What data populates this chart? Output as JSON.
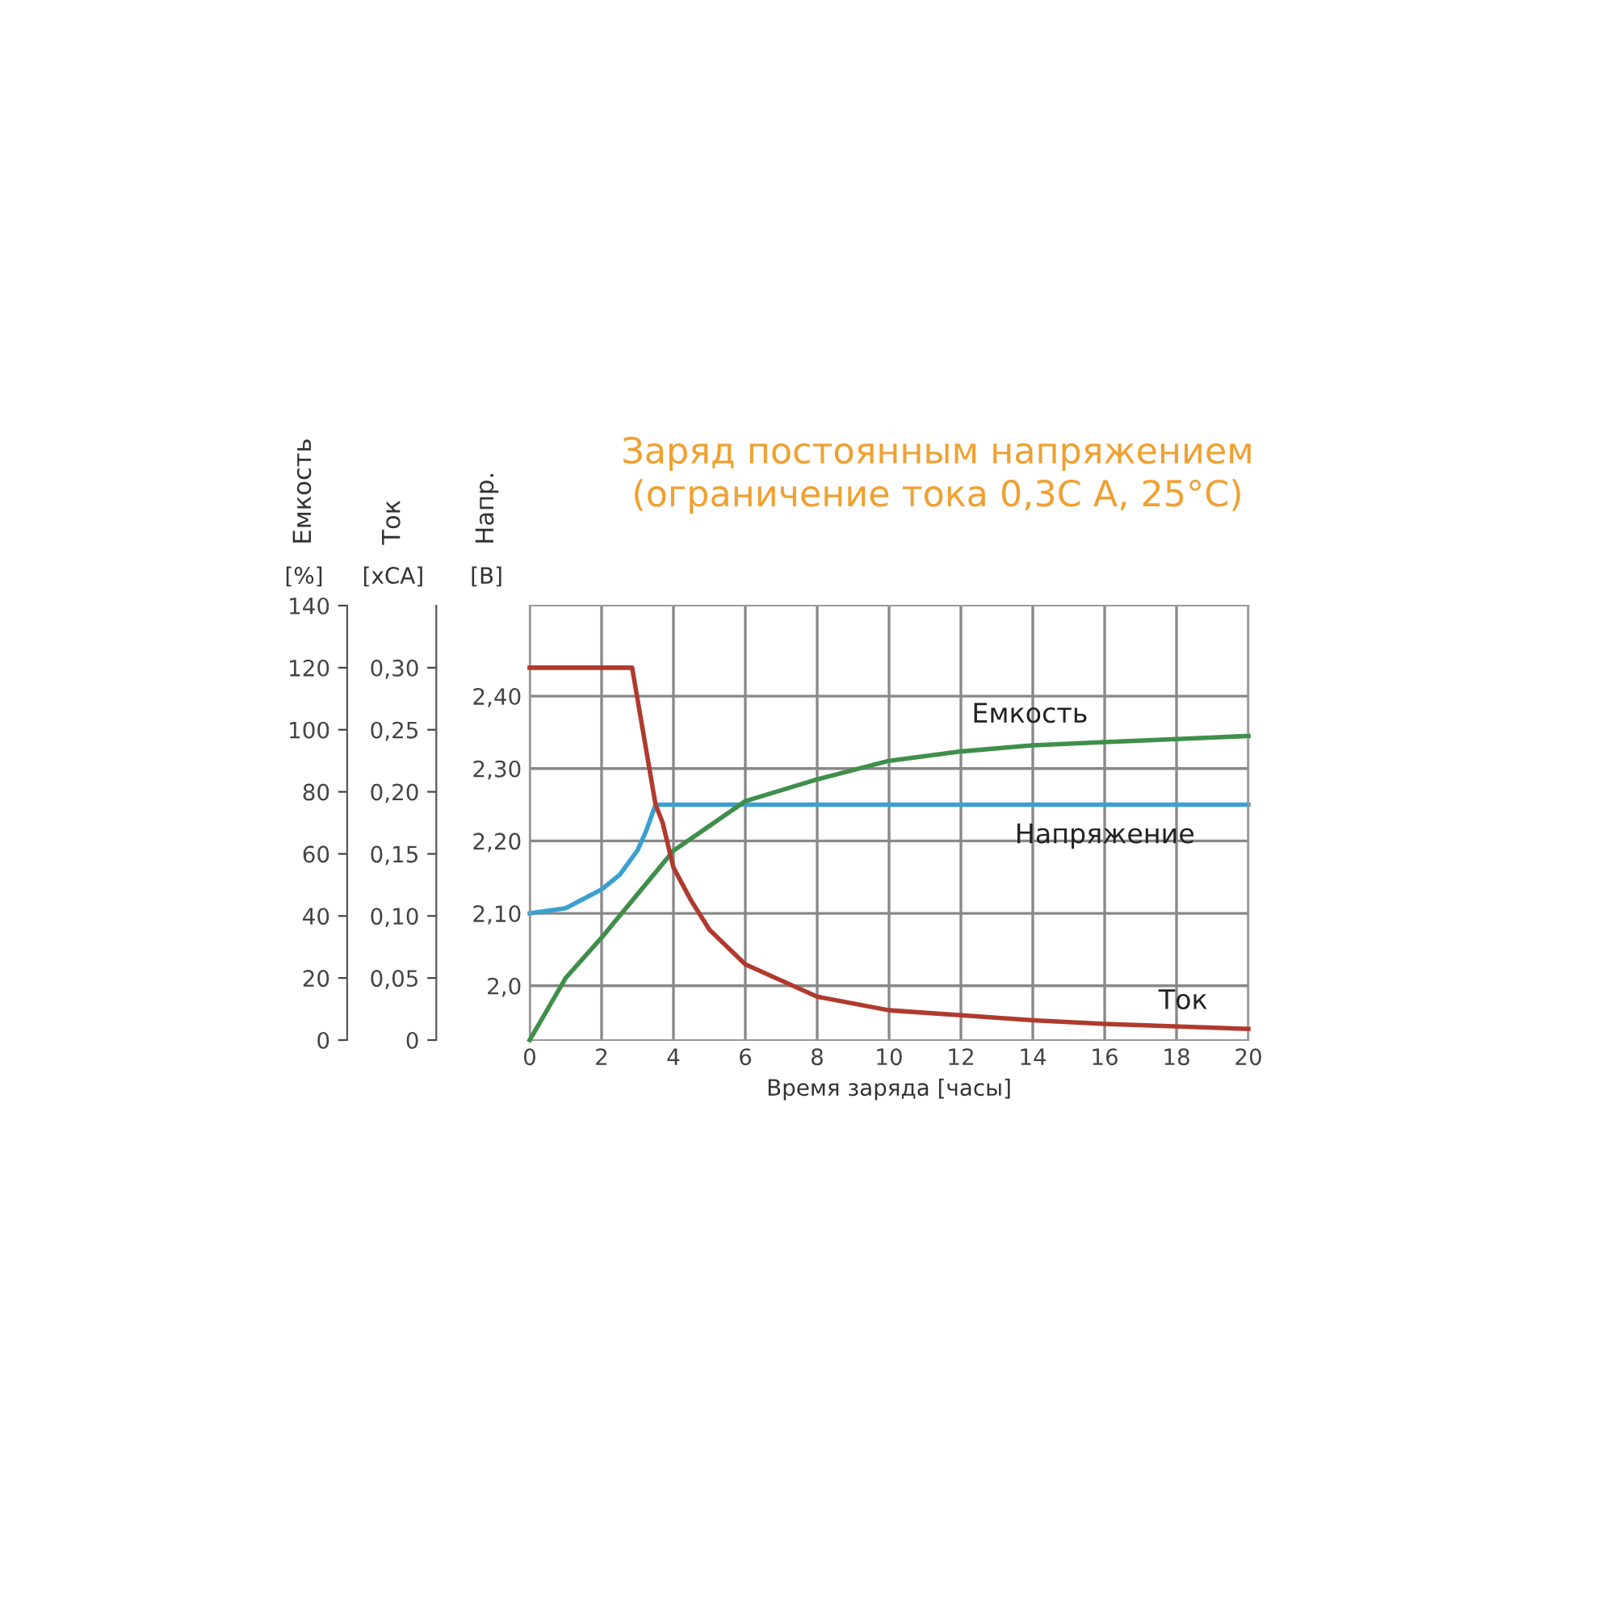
{
  "chart_data": {
    "type": "line",
    "title": "Заряд постоянным напряжением\n(ограничение тока 0,3С А, 25°С)",
    "xlabel": "Время заряда [часы]",
    "ylabel": "Напр.",
    "y2label": "Ток",
    "y3label": "Емкость",
    "annotations": [
      "[В]",
      "[xCA]",
      "[%]"
    ],
    "xlim": [
      0,
      20
    ],
    "xticks": [
      0,
      2,
      4,
      6,
      8,
      10,
      12,
      14,
      16,
      18,
      20
    ],
    "y3lim": [
      0,
      140
    ],
    "y3ticks": [
      0,
      20,
      40,
      60,
      80,
      100,
      120,
      140
    ],
    "y2lim": [
      0,
      0.35
    ],
    "y2ticks": [
      0,
      {
        "value": 0.05,
        "label": "0,05"
      },
      {
        "value": 0.1,
        "label": "0,10"
      },
      {
        "value": 0.15,
        "label": "0,15"
      },
      {
        "value": 0.2,
        "label": "0,20"
      },
      {
        "value": 0.25,
        "label": "0,25"
      },
      {
        "value": 0.3,
        "label": "0,30"
      }
    ],
    "ylim": [
      1.925,
      2.525
    ],
    "yticks": [
      {
        "value": 2.0,
        "label": "2,0"
      },
      {
        "value": 2.1,
        "label": "2,10"
      },
      {
        "value": 2.2,
        "label": "2,20"
      },
      {
        "value": 2.3,
        "label": "2,30"
      },
      {
        "value": 2.4,
        "label": "2,40"
      }
    ],
    "grid": true,
    "legend": false,
    "marker": "none",
    "line_style": "solid",
    "series": [
      {
        "name": "Емкость",
        "color": "#3f8f4a",
        "axis": "y3",
        "x": [
          0,
          1,
          2,
          3,
          4,
          5,
          6,
          8,
          10,
          12,
          14,
          16,
          18,
          20
        ],
        "values": [
          0,
          20,
          33,
          47,
          61,
          69,
          77,
          84,
          90,
          93,
          95,
          96,
          97,
          98
        ]
      },
      {
        "name": "Напряжение",
        "color": "#3aa0d0",
        "axis": "y",
        "x": [
          0,
          1,
          2,
          2.5,
          3,
          3.25,
          3.5,
          20
        ],
        "values": [
          2.1,
          2.107,
          2.133,
          2.153,
          2.187,
          2.215,
          2.25,
          2.25
        ]
      },
      {
        "name": "Ток",
        "color": "#b03a2e",
        "axis": "y2",
        "x": [
          0,
          2.85,
          3.5,
          3.7,
          4,
          4.5,
          5,
          6,
          8,
          10,
          12,
          14,
          16,
          20
        ],
        "values": [
          0.3,
          0.3,
          0.19,
          0.175,
          0.139,
          0.112,
          0.089,
          0.061,
          0.035,
          0.024,
          0.02,
          0.016,
          0.013,
          0.009
        ]
      }
    ]
  }
}
